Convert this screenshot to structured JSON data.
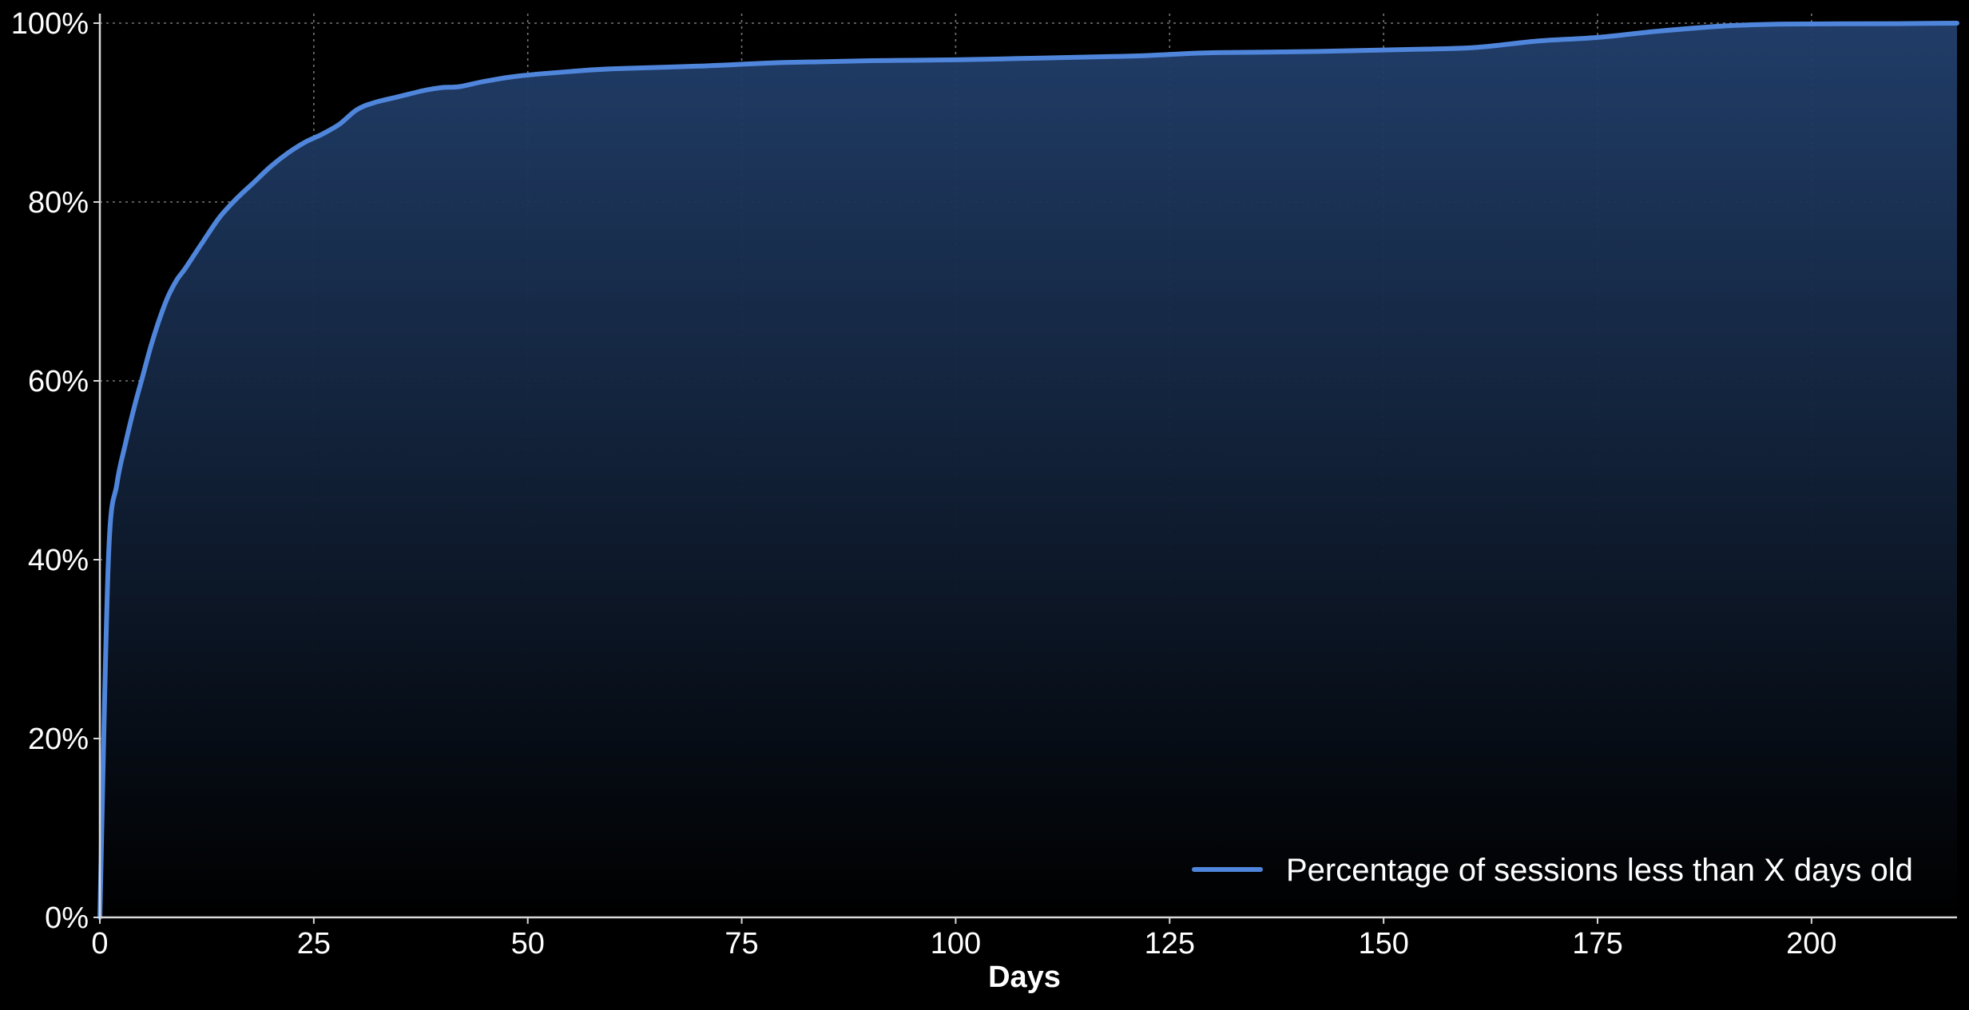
{
  "chart_data": {
    "type": "area",
    "title": "",
    "xlabel": "Days",
    "ylabel": "",
    "xlim": [
      0,
      217
    ],
    "ylim": [
      0,
      100
    ],
    "x_ticks": [
      0,
      25,
      50,
      75,
      100,
      125,
      150,
      175,
      200
    ],
    "x_tick_labels": [
      "0",
      "25",
      "50",
      "75",
      "100",
      "125",
      "150",
      "175",
      "200"
    ],
    "y_ticks": [
      0,
      20,
      40,
      60,
      80,
      100
    ],
    "y_tick_labels": [
      "0%",
      "20%",
      "40%",
      "60%",
      "80%",
      "100%"
    ],
    "grid": true,
    "legend_position": "bottom-right",
    "colors": {
      "background": "#000000",
      "line": "#4f86dc",
      "fill_top": "#22406d",
      "fill_bottom": "#000000"
    },
    "series": [
      {
        "name": "Percentage of sessions less than X days old",
        "x": [
          0,
          1,
          2,
          3,
          4,
          5,
          6,
          7,
          8,
          9,
          10,
          12,
          14,
          16,
          18,
          20,
          22,
          24,
          26,
          28,
          30,
          32,
          35,
          38,
          40,
          42,
          45,
          49,
          55,
          60,
          70,
          80,
          90,
          100,
          110,
          120,
          125,
          130,
          140,
          150,
          155,
          161,
          168,
          175,
          182,
          190,
          197,
          210,
          217
        ],
        "y": [
          0,
          40,
          48.5,
          53,
          57,
          60.5,
          64,
          67,
          69.5,
          71.3,
          72.6,
          75.5,
          78.3,
          80.4,
          82.2,
          84,
          85.5,
          86.7,
          87.6,
          88.7,
          90.3,
          91.1,
          91.8,
          92.5,
          92.8,
          92.9,
          93.5,
          94.1,
          94.6,
          94.9,
          95.2,
          95.6,
          95.8,
          95.9,
          96.1,
          96.3,
          96.5,
          96.7,
          96.8,
          97,
          97.1,
          97.3,
          98,
          98.4,
          99.1,
          99.7,
          99.9,
          99.95,
          100
        ]
      }
    ]
  }
}
